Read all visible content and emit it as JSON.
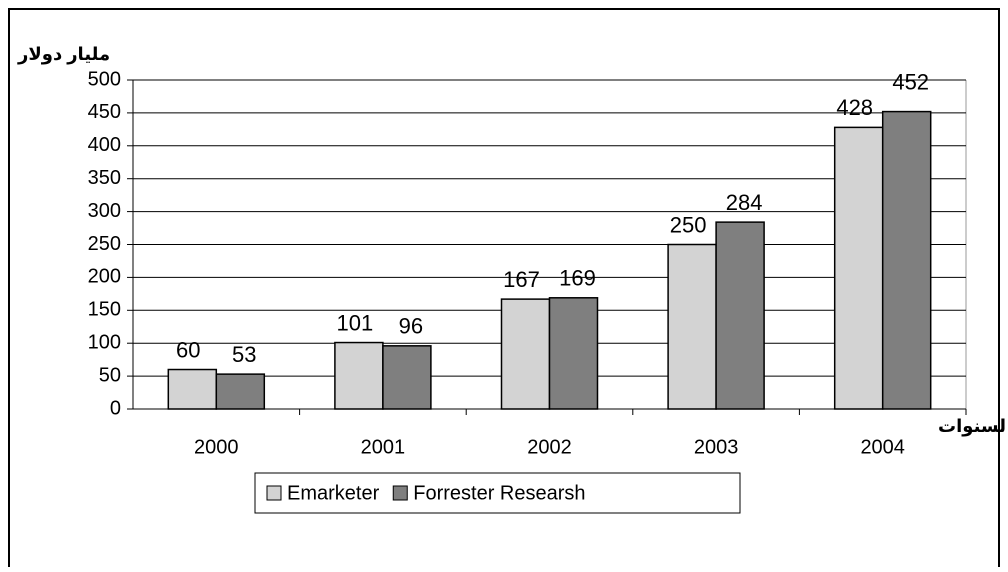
{
  "chart_data": {
    "type": "bar",
    "ylabel": "مليار دولار",
    "xlabel": "لسنوات",
    "categories": [
      "2000",
      "2001",
      "2002",
      "2003",
      "2004"
    ],
    "series": [
      {
        "name": "Emarketer",
        "color": "#d3d3d3",
        "values": [
          60,
          101,
          167,
          250,
          428
        ]
      },
      {
        "name": "Forrester Researsh",
        "color": "#7f7f7f",
        "values": [
          53,
          96,
          169,
          284,
          452
        ]
      }
    ],
    "ylim": [
      0,
      500
    ],
    "yticks": [
      0,
      50,
      100,
      150,
      200,
      250,
      300,
      350,
      400,
      450,
      500
    ],
    "grid": true,
    "legend": "bottom"
  }
}
